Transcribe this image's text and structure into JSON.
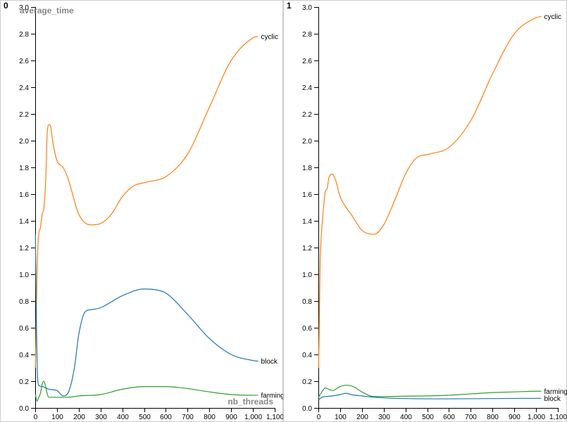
{
  "chart_data": [
    {
      "type": "line",
      "panel_label": "0",
      "ylabel": "average_time",
      "xlabel": "nb_threads",
      "xlim": [
        0,
        1100
      ],
      "ylim": [
        0,
        3.0
      ],
      "x_ticks": [
        0,
        100,
        200,
        300,
        400,
        500,
        600,
        700,
        800,
        900,
        1000,
        1100
      ],
      "x_tick_labels": [
        "0",
        "100",
        "200",
        "300",
        "400",
        "500",
        "600",
        "700",
        "800",
        "900",
        "1,000",
        "1,100"
      ],
      "y_ticks": [
        0,
        0.2,
        0.4,
        0.6,
        0.8,
        1.0,
        1.2,
        1.4,
        1.6,
        1.8,
        2.0,
        2.2,
        2.4,
        2.6,
        2.8,
        3.0
      ],
      "y_tick_labels": [
        "0.0",
        "0.2",
        "0.4",
        "0.6",
        "0.8",
        "1.0",
        "1.2",
        "1.4",
        "1.6",
        "1.8",
        "2.0",
        "2.2",
        "2.4",
        "2.6",
        "2.8",
        "3.0"
      ],
      "grid": false,
      "series": [
        {
          "name": "cyclic",
          "color": "#ff7f0e",
          "points": [
            [
              1,
              0.3
            ],
            [
              4,
              0.6
            ],
            [
              8,
              1.0
            ],
            [
              12,
              1.2
            ],
            [
              16,
              1.3
            ],
            [
              24,
              1.35
            ],
            [
              32,
              1.45
            ],
            [
              40,
              1.5
            ],
            [
              48,
              1.7
            ],
            [
              56,
              2.08
            ],
            [
              64,
              2.12
            ],
            [
              72,
              2.1
            ],
            [
              80,
              2.0
            ],
            [
              100,
              1.85
            ],
            [
              128,
              1.8
            ],
            [
              150,
              1.72
            ],
            [
              200,
              1.45
            ],
            [
              256,
              1.37
            ],
            [
              300,
              1.38
            ],
            [
              350,
              1.45
            ],
            [
              400,
              1.58
            ],
            [
              450,
              1.66
            ],
            [
              512,
              1.69
            ],
            [
              600,
              1.73
            ],
            [
              700,
              1.9
            ],
            [
              800,
              2.25
            ],
            [
              900,
              2.6
            ],
            [
              1000,
              2.77
            ],
            [
              1024,
              2.78
            ]
          ]
        },
        {
          "name": "block",
          "color": "#1f77b4",
          "points": [
            [
              1,
              1.3
            ],
            [
              4,
              0.8
            ],
            [
              8,
              0.4
            ],
            [
              12,
              0.2
            ],
            [
              16,
              0.17
            ],
            [
              32,
              0.16
            ],
            [
              64,
              0.14
            ],
            [
              100,
              0.13
            ],
            [
              128,
              0.09
            ],
            [
              150,
              0.11
            ],
            [
              180,
              0.3
            ],
            [
              200,
              0.55
            ],
            [
              230,
              0.72
            ],
            [
              256,
              0.735
            ],
            [
              300,
              0.75
            ],
            [
              400,
              0.84
            ],
            [
              500,
              0.89
            ],
            [
              550,
              0.885
            ],
            [
              600,
              0.86
            ],
            [
              700,
              0.7
            ],
            [
              800,
              0.52
            ],
            [
              900,
              0.4
            ],
            [
              1000,
              0.355
            ],
            [
              1024,
              0.35
            ]
          ]
        },
        {
          "name": "farming",
          "color": "#2ca02c",
          "points": [
            [
              1,
              0.1
            ],
            [
              8,
              0.05
            ],
            [
              16,
              0.08
            ],
            [
              24,
              0.11
            ],
            [
              32,
              0.18
            ],
            [
              40,
              0.2
            ],
            [
              48,
              0.16
            ],
            [
              56,
              0.1
            ],
            [
              64,
              0.08
            ],
            [
              100,
              0.08
            ],
            [
              150,
              0.08
            ],
            [
              200,
              0.09
            ],
            [
              300,
              0.1
            ],
            [
              400,
              0.14
            ],
            [
              500,
              0.16
            ],
            [
              600,
              0.16
            ],
            [
              700,
              0.145
            ],
            [
              800,
              0.12
            ],
            [
              900,
              0.1
            ],
            [
              1000,
              0.095
            ],
            [
              1024,
              0.095
            ]
          ]
        }
      ]
    },
    {
      "type": "line",
      "panel_label": "1",
      "ylabel": "",
      "xlabel": "",
      "xlim": [
        0,
        1100
      ],
      "ylim": [
        0,
        3.0
      ],
      "x_ticks": [
        0,
        100,
        200,
        300,
        400,
        500,
        600,
        700,
        800,
        900,
        1000,
        1100
      ],
      "x_tick_labels": [
        "0",
        "100",
        "200",
        "300",
        "400",
        "500",
        "600",
        "700",
        "800",
        "900",
        "1,000",
        "1,100"
      ],
      "y_ticks": [
        0,
        0.2,
        0.4,
        0.6,
        0.8,
        1.0,
        1.2,
        1.4,
        1.6,
        1.8,
        2.0,
        2.2,
        2.4,
        2.6,
        2.8,
        3.0
      ],
      "y_tick_labels": [
        "0.0",
        "0.2",
        "0.4",
        "0.6",
        "0.8",
        "1.0",
        "1.2",
        "1.4",
        "1.6",
        "1.8",
        "2.0",
        "2.2",
        "2.4",
        "2.6",
        "2.8",
        "3.0"
      ],
      "grid": false,
      "series": [
        {
          "name": "cyclic",
          "color": "#ff7f0e",
          "points": [
            [
              1,
              0.3
            ],
            [
              4,
              0.6
            ],
            [
              8,
              1.05
            ],
            [
              12,
              1.25
            ],
            [
              16,
              1.35
            ],
            [
              24,
              1.5
            ],
            [
              32,
              1.62
            ],
            [
              40,
              1.64
            ],
            [
              48,
              1.72
            ],
            [
              64,
              1.75
            ],
            [
              80,
              1.7
            ],
            [
              100,
              1.58
            ],
            [
              128,
              1.5
            ],
            [
              150,
              1.45
            ],
            [
              200,
              1.33
            ],
            [
              256,
              1.3
            ],
            [
              300,
              1.37
            ],
            [
              350,
              1.55
            ],
            [
              400,
              1.75
            ],
            [
              450,
              1.87
            ],
            [
              512,
              1.9
            ],
            [
              600,
              1.95
            ],
            [
              700,
              2.15
            ],
            [
              800,
              2.5
            ],
            [
              900,
              2.8
            ],
            [
              1000,
              2.92
            ],
            [
              1024,
              2.93
            ]
          ]
        },
        {
          "name": "farming",
          "color": "#2ca02c",
          "points": [
            [
              1,
              0.08
            ],
            [
              8,
              0.1
            ],
            [
              16,
              0.12
            ],
            [
              32,
              0.15
            ],
            [
              48,
              0.14
            ],
            [
              64,
              0.13
            ],
            [
              100,
              0.16
            ],
            [
              128,
              0.17
            ],
            [
              160,
              0.16
            ],
            [
              200,
              0.12
            ],
            [
              256,
              0.085
            ],
            [
              300,
              0.085
            ],
            [
              400,
              0.088
            ],
            [
              500,
              0.09
            ],
            [
              600,
              0.095
            ],
            [
              700,
              0.105
            ],
            [
              800,
              0.115
            ],
            [
              900,
              0.12
            ],
            [
              1000,
              0.125
            ],
            [
              1024,
              0.125
            ]
          ]
        },
        {
          "name": "block",
          "color": "#1f77b4",
          "points": [
            [
              1,
              0.06
            ],
            [
              8,
              0.07
            ],
            [
              16,
              0.08
            ],
            [
              32,
              0.085
            ],
            [
              64,
              0.09
            ],
            [
              100,
              0.1
            ],
            [
              128,
              0.11
            ],
            [
              150,
              0.1
            ],
            [
              200,
              0.09
            ],
            [
              256,
              0.08
            ],
            [
              400,
              0.07
            ],
            [
              600,
              0.068
            ],
            [
              800,
              0.07
            ],
            [
              1000,
              0.072
            ],
            [
              1024,
              0.072
            ]
          ]
        }
      ]
    }
  ]
}
